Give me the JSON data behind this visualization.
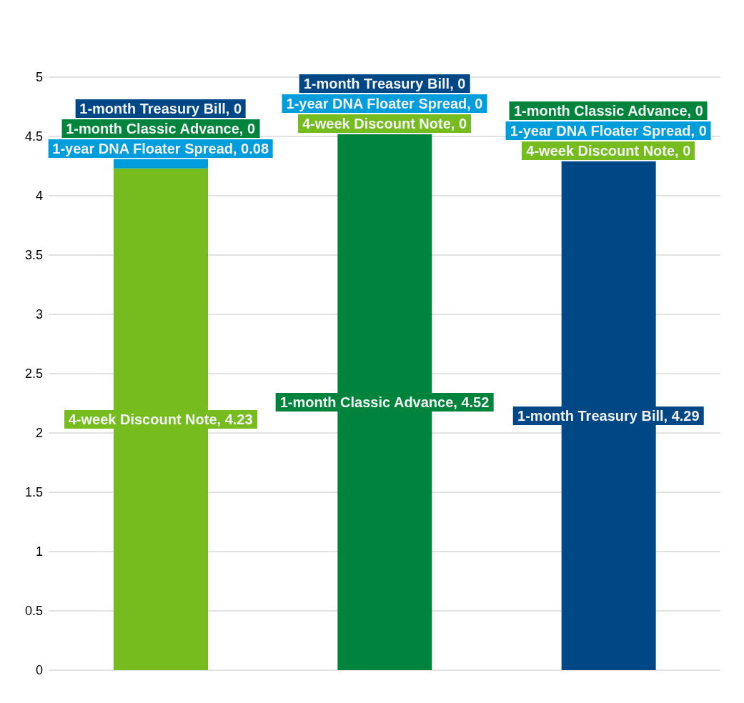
{
  "chart_data": {
    "type": "bar",
    "stacked": true,
    "categories": [
      null,
      null,
      null
    ],
    "series": [
      {
        "color": "#77bc1f",
        "values": [
          4.23,
          0,
          0
        ],
        "value_labels": [
          "4-week Discount Note, 4.23",
          "4-week Discount Note, 0",
          "4-week Discount Note, 0"
        ]
      },
      {
        "color": "#009ddc",
        "values": [
          0.08,
          0,
          0
        ],
        "value_labels": [
          "1-year DNA Floater Spread, 0.08",
          "1-year DNA Floater Spread, 0",
          "1-year DNA Floater Spread, 0"
        ]
      },
      {
        "color": "#00843d",
        "values": [
          0,
          4.52,
          0
        ],
        "value_labels": [
          "1-month Classic Advance, 0",
          "1-month Classic Advance, 4.52",
          "1-month Classic Advance, 0"
        ]
      },
      {
        "color": "#004785",
        "values": [
          0,
          0,
          4.29
        ],
        "value_labels": [
          "1-month Treasury Bill, 0",
          "1-month Treasury Bill, 0",
          "1-month Treasury Bill, 4.29"
        ]
      }
    ],
    "ylim": [
      0,
      5
    ],
    "yticks": [
      0,
      0.5,
      1,
      1.5,
      2,
      2.5,
      3,
      3.5,
      4,
      4.5,
      5
    ],
    "grid": "y",
    "legend": false
  }
}
